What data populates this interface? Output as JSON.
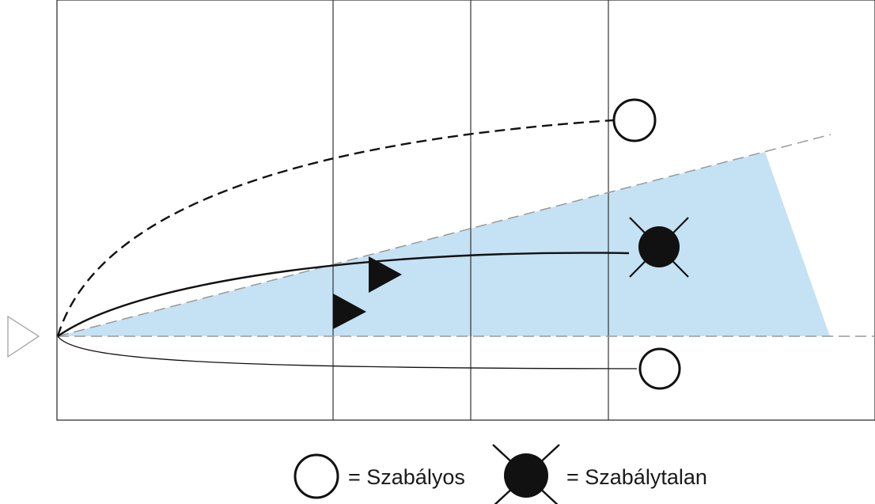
{
  "colors": {
    "zone_fill": "#c4e2f4",
    "ink": "#111111",
    "grid": "#333333",
    "zone_edge": "#999999",
    "marker_outline": "#aaaaaa"
  },
  "icons": {
    "start": "hollow-triangle-icon",
    "regular": "hollow-circle-icon",
    "irregular": "crossed-filled-circle-icon",
    "direction": "filled-triangle-icon"
  },
  "legend": {
    "regular_label": "= Szabályos",
    "irregular_label": "= Szabálytalan"
  }
}
